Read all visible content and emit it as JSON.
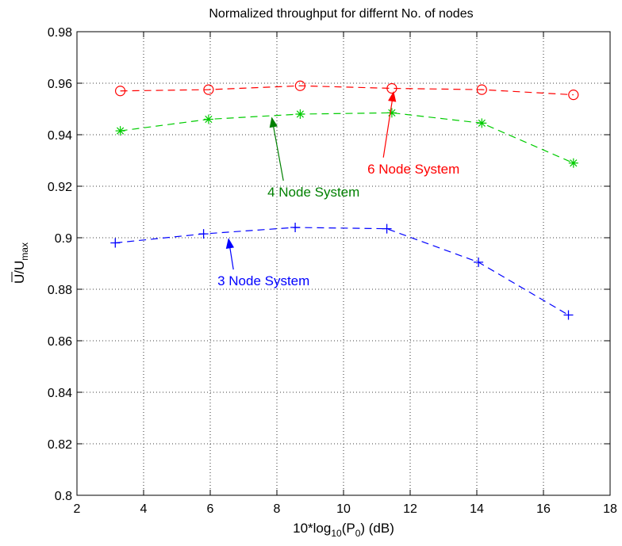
{
  "chart_data": {
    "type": "line",
    "title": "Normalized throughput for differnt No. of nodes",
    "xlabel": {
      "main": "10*log",
      "sub1": "10",
      "mid": "(P",
      "sub2": "0",
      "end": ") (dB)"
    },
    "ylabel": {
      "main": "U/U",
      "sub": "max"
    },
    "xlim": [
      2,
      18
    ],
    "ylim": [
      0.8,
      0.98
    ],
    "xticks": [
      "2",
      "4",
      "6",
      "8",
      "10",
      "12",
      "14",
      "16",
      "18"
    ],
    "yticks": [
      "0.8",
      "0.82",
      "0.84",
      "0.86",
      "0.88",
      "0.9",
      "0.92",
      "0.94",
      "0.96",
      "0.98"
    ],
    "grid": true,
    "series": [
      {
        "name": "6 Node System",
        "color": "#ff0000",
        "marker": "circle",
        "x": [
          3.3,
          5.95,
          8.7,
          11.45,
          14.15,
          16.9
        ],
        "y": [
          0.957,
          0.9575,
          0.959,
          0.958,
          0.9575,
          0.9555
        ]
      },
      {
        "name": "4 Node System",
        "color": "#00cc00",
        "marker": "asterisk",
        "x": [
          3.3,
          5.95,
          8.7,
          11.45,
          14.15,
          16.9
        ],
        "y": [
          0.9415,
          0.946,
          0.948,
          0.9485,
          0.9445,
          0.929
        ]
      },
      {
        "name": "3 Node System",
        "color": "#0000ff",
        "marker": "plus",
        "x": [
          3.15,
          5.8,
          8.55,
          11.3,
          14.05,
          16.75
        ],
        "y": [
          0.898,
          0.9015,
          0.904,
          0.9035,
          0.8905,
          0.87
        ]
      }
    ],
    "annotations": [
      {
        "text": "6 Node System",
        "color": "#ff0000",
        "x": 12.1,
        "y": 0.925,
        "arrow_to": [
          11.5,
          0.9565
        ]
      },
      {
        "text": "4 Node System",
        "color": "#008000",
        "x": 9.1,
        "y": 0.916,
        "arrow_to": [
          7.85,
          0.9465
        ]
      },
      {
        "text": "3 Node System",
        "color": "#0000ff",
        "x": 7.6,
        "y": 0.8815,
        "arrow_to": [
          6.55,
          0.8995
        ]
      }
    ]
  }
}
